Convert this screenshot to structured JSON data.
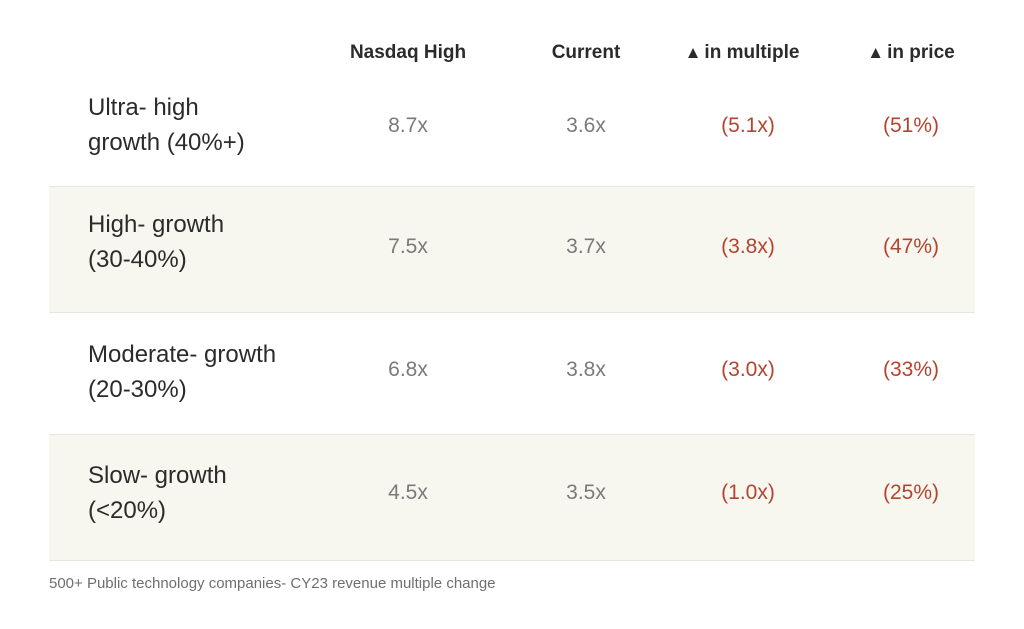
{
  "table": {
    "headers": {
      "nasdaq_high": "Nasdaq High",
      "current": "Current",
      "delta_multiple_triangle": "▲",
      "delta_multiple": "in multiple",
      "delta_price_triangle": "▲",
      "delta_price": "in price"
    },
    "rows": [
      {
        "label_line1": "Ultra- high",
        "label_line2": "growth (40%+)",
        "nasdaq_high": "8.7x",
        "current": "3.6x",
        "delta_multiple": "(5.1x)",
        "delta_price": "(51%)"
      },
      {
        "label_line1": "High- growth",
        "label_line2": "(30-40%)",
        "nasdaq_high": "7.5x",
        "current": "3.7x",
        "delta_multiple": "(3.8x)",
        "delta_price": "(47%)"
      },
      {
        "label_line1": "Moderate- growth",
        "label_line2": "(20-30%)",
        "nasdaq_high": "6.8x",
        "current": "3.8x",
        "delta_multiple": "(3.0x)",
        "delta_price": "(33%)"
      },
      {
        "label_line1": "Slow- growth",
        "label_line2": "(<20%)",
        "nasdaq_high": "4.5x",
        "current": "3.5x",
        "delta_multiple": "(1.0x)",
        "delta_price": "(25%)"
      }
    ]
  },
  "footnote": "500+ Public technology companies- CY23 revenue multiple change",
  "colors": {
    "negative": "#b4432f",
    "muted_value": "#7a7a7a",
    "shaded_row": "#f7f7f0"
  }
}
